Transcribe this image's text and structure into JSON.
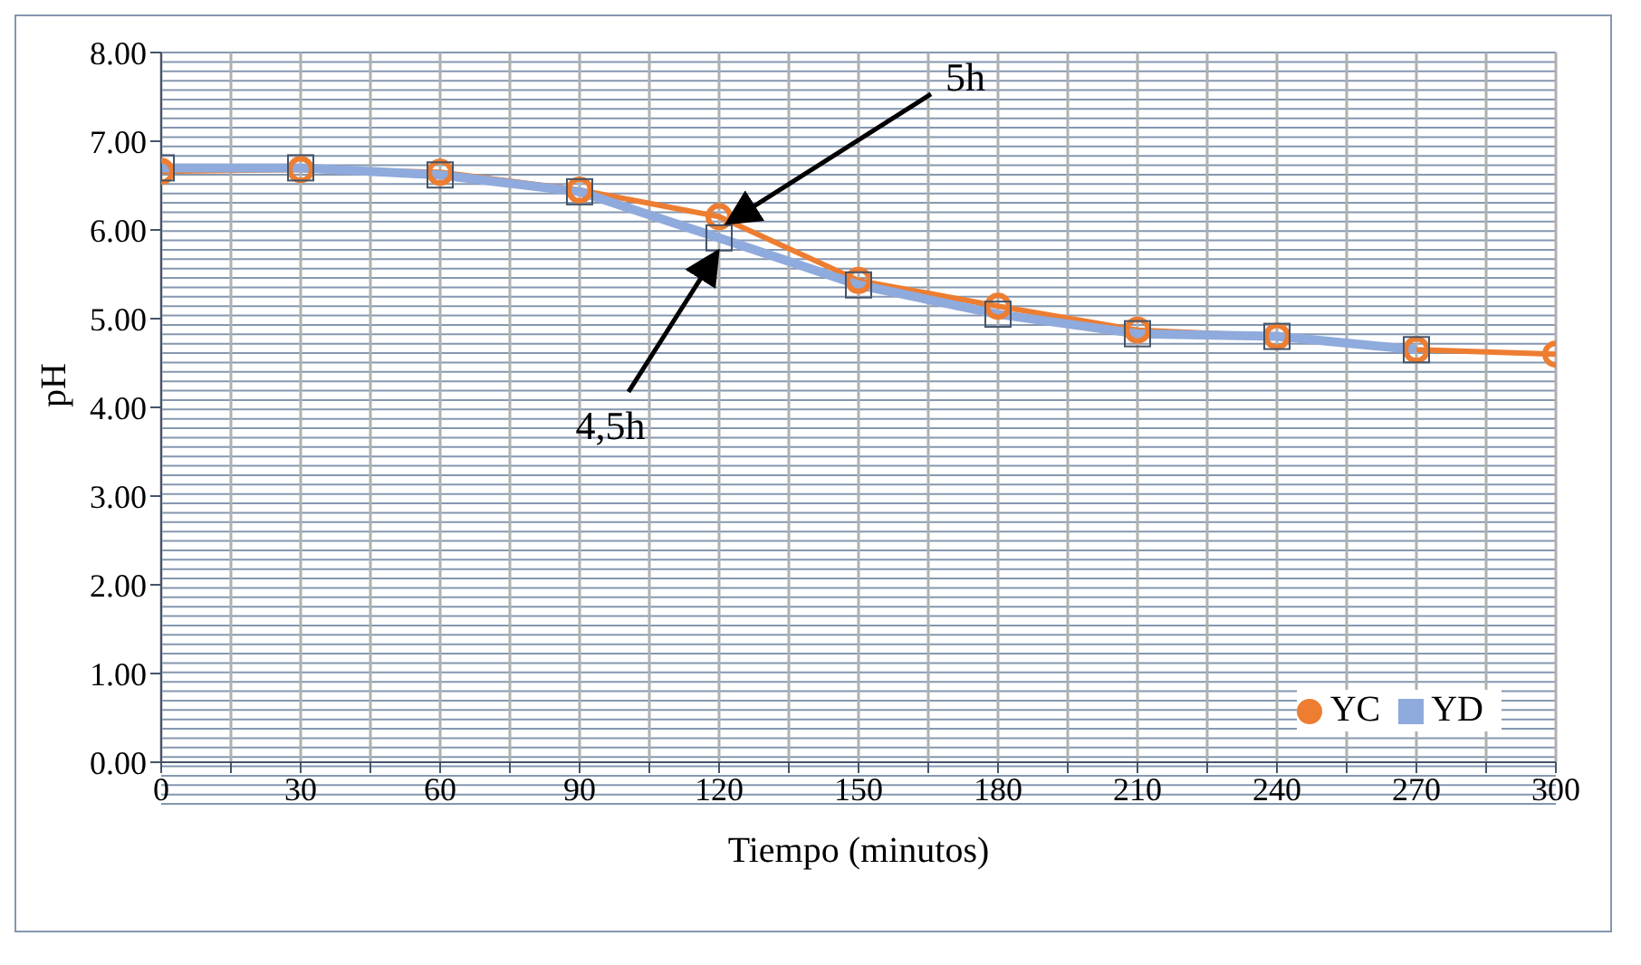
{
  "chart_data": {
    "type": "line",
    "xlabel": "Tiempo (minutos)",
    "ylabel": "pH",
    "x": [
      0,
      30,
      60,
      90,
      120,
      150,
      180,
      210,
      240,
      270,
      300
    ],
    "series": [
      {
        "name": "YC",
        "color": "#ed7d31",
        "marker": "circle",
        "values": [
          6.66,
          6.68,
          6.65,
          6.45,
          6.15,
          5.43,
          5.14,
          4.87,
          4.8,
          4.65,
          4.6
        ]
      },
      {
        "name": "YD",
        "color": "#8faadc",
        "marker": "square",
        "values": [
          6.7,
          6.7,
          6.62,
          6.43,
          5.91,
          5.38,
          5.05,
          4.83,
          4.8,
          4.65,
          null
        ]
      }
    ],
    "xlim": [
      0,
      300
    ],
    "xticks": [
      0,
      {
        "value": 15,
        "label": null
      },
      30,
      {
        "value": 45,
        "label": null
      },
      60,
      {
        "value": 75,
        "label": null
      },
      90,
      {
        "value": 105,
        "label": null
      },
      120,
      {
        "value": 135,
        "label": null
      },
      150,
      {
        "value": 165,
        "label": null
      },
      180,
      {
        "value": 195,
        "label": null
      },
      210,
      {
        "value": 225,
        "label": null
      },
      240,
      {
        "value": 255,
        "label": null
      },
      270,
      {
        "value": 285,
        "label": null
      },
      300
    ],
    "ylim": [
      0,
      8
    ],
    "yticks": [
      {
        "value": 0,
        "label": "0.00"
      },
      {
        "value": 1,
        "label": "1.00"
      },
      {
        "value": 2,
        "label": "2.00"
      },
      {
        "value": 3,
        "label": "3.00"
      },
      {
        "value": 4,
        "label": "4.00"
      },
      {
        "value": 5,
        "label": "5.00"
      },
      {
        "value": 6,
        "label": "6.00"
      },
      {
        "value": 7,
        "label": "7.00"
      },
      {
        "value": 8,
        "label": "8.00"
      }
    ],
    "grid": true,
    "legend": "bottom right",
    "annotations": [
      {
        "text": "5h",
        "x": 120,
        "y": 6.15
      },
      {
        "text": "4,5h",
        "x": 120,
        "y": 5.91
      }
    ]
  }
}
